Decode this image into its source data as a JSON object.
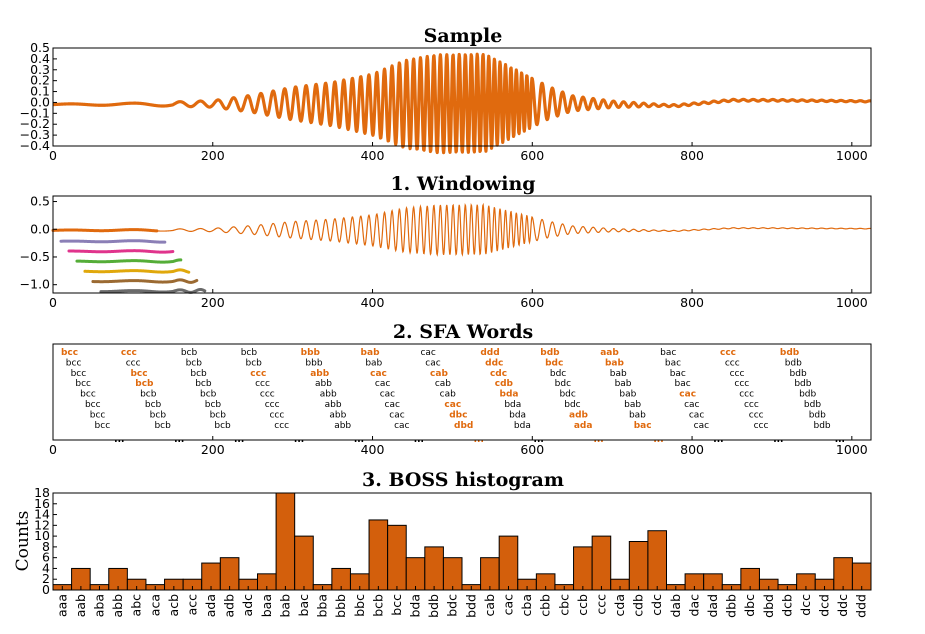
{
  "colors": {
    "orange": "#e06a0e",
    "bar_fill": "#d35f0c",
    "bar_edge": "#000000",
    "highlight": "#e06a0e",
    "normal_word": "#000000",
    "window_lines": [
      "#e06a0e",
      "#8b7fb6",
      "#e0348c",
      "#55ad38",
      "#e0a80c",
      "#9b6a32",
      "#6a6a6a"
    ]
  },
  "chart_data": [
    {
      "type": "line",
      "title": "Sample",
      "xlim": [
        0,
        1024
      ],
      "ylim": [
        -0.4,
        0.5
      ],
      "x_ticks": [
        0,
        200,
        400,
        600,
        800,
        1000
      ],
      "y_ticks": [
        -0.4,
        -0.3,
        -0.2,
        -0.1,
        0.0,
        0.1,
        0.2,
        0.3,
        0.4,
        0.5
      ],
      "y_tick_labels": [
        "−0.4",
        "−0.3",
        "−0.2",
        "−0.1",
        "0.0",
        "0.1",
        "0.2",
        "0.3",
        "0.4",
        "0.5"
      ],
      "series": [
        {
          "envelope": [
            [
              0,
              0.005
            ],
            [
              100,
              0.01
            ],
            [
              200,
              0.03
            ],
            [
              250,
              0.08
            ],
            [
              300,
              0.15
            ],
            [
              350,
              0.2
            ],
            [
              400,
              0.28
            ],
            [
              440,
              0.4
            ],
            [
              480,
              0.45
            ],
            [
              540,
              0.45
            ],
            [
              580,
              0.3
            ],
            [
              620,
              0.15
            ],
            [
              650,
              0.07
            ],
            [
              700,
              0.03
            ],
            [
              760,
              0.01
            ],
            [
              1024,
              0.005
            ]
          ],
          "offset": [
            [
              0,
              -0.02
            ],
            [
              300,
              -0.01
            ],
            [
              400,
              -0.02
            ],
            [
              600,
              0.0
            ],
            [
              780,
              -0.03
            ],
            [
              850,
              0.02
            ],
            [
              900,
              0.02
            ],
            [
              1024,
              0.01
            ]
          ]
        }
      ]
    },
    {
      "type": "line",
      "title": "1. Windowing",
      "xlim": [
        0,
        1024
      ],
      "ylim": [
        -1.15,
        0.6
      ],
      "x_ticks": [
        0,
        200,
        400,
        600,
        800,
        1000
      ],
      "y_ticks": [
        -1.0,
        -0.5,
        0.0,
        0.5
      ],
      "y_tick_labels": [
        "−1.0",
        "−0.5",
        "0.0",
        "0.5"
      ],
      "windows": [
        {
          "start": 0,
          "end": 130,
          "offset": 0.0
        },
        {
          "start": 10,
          "end": 140,
          "offset": -0.2
        },
        {
          "start": 20,
          "end": 150,
          "offset": -0.38
        },
        {
          "start": 30,
          "end": 160,
          "offset": -0.56
        },
        {
          "start": 40,
          "end": 170,
          "offset": -0.74
        },
        {
          "start": 50,
          "end": 180,
          "offset": -0.92
        },
        {
          "start": 60,
          "end": 190,
          "offset": -1.1
        }
      ]
    },
    {
      "type": "table",
      "title": "2. SFA Words",
      "xlim": [
        0,
        1024
      ],
      "x_ticks": [
        0,
        200,
        400,
        600,
        800,
        1000
      ],
      "ellipsis": "...",
      "groups": [
        {
          "x": 10,
          "words": [
            [
              "bcc",
              true
            ],
            [
              "bcc",
              false
            ],
            [
              "bcc",
              false
            ],
            [
              "bcc",
              false
            ],
            [
              "bcc",
              false
            ],
            [
              "bcc",
              false
            ],
            [
              "bcc",
              false
            ],
            [
              "bcc",
              false
            ]
          ]
        },
        {
          "x": 85,
          "words": [
            [
              "ccc",
              true
            ],
            [
              "ccc",
              false
            ],
            [
              "bcc",
              true
            ],
            [
              "bcb",
              true
            ],
            [
              "bcb",
              false
            ],
            [
              "bcb",
              false
            ],
            [
              "bcb",
              false
            ],
            [
              "bcb",
              false
            ]
          ]
        },
        {
          "x": 160,
          "words": [
            [
              "bcb",
              false
            ],
            [
              "bcb",
              false
            ],
            [
              "bcb",
              false
            ],
            [
              "bcb",
              false
            ],
            [
              "bcb",
              false
            ],
            [
              "bcb",
              false
            ],
            [
              "bcb",
              false
            ],
            [
              "bcb",
              false
            ]
          ]
        },
        {
          "x": 235,
          "words": [
            [
              "bcb",
              false
            ],
            [
              "bcb",
              false
            ],
            [
              "ccc",
              true
            ],
            [
              "ccc",
              false
            ],
            [
              "ccc",
              false
            ],
            [
              "ccc",
              false
            ],
            [
              "ccc",
              false
            ],
            [
              "ccc",
              false
            ]
          ]
        },
        {
          "x": 310,
          "words": [
            [
              "bbb",
              true
            ],
            [
              "bbb",
              false
            ],
            [
              "abb",
              true
            ],
            [
              "abb",
              false
            ],
            [
              "abb",
              false
            ],
            [
              "abb",
              false
            ],
            [
              "abb",
              false
            ],
            [
              "abb",
              false
            ]
          ]
        },
        {
          "x": 385,
          "words": [
            [
              "bab",
              true
            ],
            [
              "bab",
              false
            ],
            [
              "cac",
              true
            ],
            [
              "cac",
              false
            ],
            [
              "cac",
              false
            ],
            [
              "cac",
              false
            ],
            [
              "cac",
              false
            ],
            [
              "cac",
              false
            ]
          ]
        },
        {
          "x": 460,
          "words": [
            [
              "cac",
              false
            ],
            [
              "cac",
              false
            ],
            [
              "cab",
              true
            ],
            [
              "cab",
              false
            ],
            [
              "cab",
              false
            ],
            [
              "cac",
              true
            ],
            [
              "dbc",
              true
            ],
            [
              "dbd",
              true
            ]
          ]
        },
        {
          "x": 535,
          "words": [
            [
              "ddd",
              true
            ],
            [
              "ddc",
              true
            ],
            [
              "cdc",
              true
            ],
            [
              "cdb",
              true
            ],
            [
              "bda",
              true
            ],
            [
              "bda",
              false
            ],
            [
              "bda",
              false
            ],
            [
              "bda",
              false
            ]
          ]
        },
        {
          "x": 610,
          "words": [
            [
              "bdb",
              true
            ],
            [
              "bdc",
              true
            ],
            [
              "bdc",
              false
            ],
            [
              "bdc",
              false
            ],
            [
              "bdc",
              false
            ],
            [
              "bdc",
              false
            ],
            [
              "adb",
              true
            ],
            [
              "ada",
              true
            ]
          ]
        },
        {
          "x": 685,
          "words": [
            [
              "aab",
              true
            ],
            [
              "bab",
              true
            ],
            [
              "bab",
              false
            ],
            [
              "bab",
              false
            ],
            [
              "bab",
              false
            ],
            [
              "bab",
              false
            ],
            [
              "bab",
              false
            ],
            [
              "bac",
              true
            ]
          ]
        },
        {
          "x": 760,
          "words": [
            [
              "bac",
              false
            ],
            [
              "bac",
              false
            ],
            [
              "bac",
              false
            ],
            [
              "bac",
              false
            ],
            [
              "cac",
              true
            ],
            [
              "cac",
              false
            ],
            [
              "cac",
              false
            ],
            [
              "cac",
              false
            ]
          ]
        },
        {
          "x": 835,
          "words": [
            [
              "ccc",
              true
            ],
            [
              "ccc",
              false
            ],
            [
              "ccc",
              false
            ],
            [
              "ccc",
              false
            ],
            [
              "ccc",
              false
            ],
            [
              "ccc",
              false
            ],
            [
              "ccc",
              false
            ],
            [
              "ccc",
              false
            ]
          ]
        },
        {
          "x": 910,
          "words": [
            [
              "bdb",
              true
            ],
            [
              "bdb",
              false
            ],
            [
              "bdb",
              false
            ],
            [
              "bdb",
              false
            ],
            [
              "bdb",
              false
            ],
            [
              "bdb",
              false
            ],
            [
              "bdb",
              false
            ],
            [
              "bdb",
              false
            ]
          ]
        }
      ],
      "dots": [
        {
          "x": 83,
          "hl": false
        },
        {
          "x": 158,
          "hl": false
        },
        {
          "x": 233,
          "hl": false
        },
        {
          "x": 308,
          "hl": false
        },
        {
          "x": 383,
          "hl": false
        },
        {
          "x": 458,
          "hl": false
        },
        {
          "x": 533,
          "hl": true
        },
        {
          "x": 608,
          "hl": false
        },
        {
          "x": 683,
          "hl": true
        },
        {
          "x": 758,
          "hl": true
        },
        {
          "x": 833,
          "hl": false
        },
        {
          "x": 908,
          "hl": false
        },
        {
          "x": 985,
          "hl": false
        }
      ]
    },
    {
      "type": "bar",
      "title": "3. BOSS histogram",
      "ylabel": "Counts",
      "ylim": [
        0,
        18
      ],
      "y_ticks": [
        0,
        2,
        4,
        6,
        8,
        10,
        12,
        14,
        16,
        18
      ],
      "categories": [
        "aaa",
        "aab",
        "aba",
        "abb",
        "abc",
        "aca",
        "acb",
        "acc",
        "ada",
        "adb",
        "adc",
        "baa",
        "bab",
        "bac",
        "bba",
        "bbb",
        "bbc",
        "bcb",
        "bcc",
        "bda",
        "bdb",
        "bdc",
        "bdd",
        "cab",
        "cac",
        "cba",
        "cbb",
        "cbc",
        "ccb",
        "ccc",
        "cda",
        "cdb",
        "cdc",
        "dab",
        "dac",
        "dad",
        "dbb",
        "dbc",
        "dbd",
        "dcb",
        "dcc",
        "dcd",
        "ddc",
        "ddd"
      ],
      "values": [
        1,
        4,
        1,
        4,
        2,
        1,
        2,
        2,
        5,
        6,
        2,
        3,
        18,
        10,
        1,
        4,
        3,
        13,
        12,
        6,
        8,
        6,
        1,
        6,
        10,
        2,
        3,
        1,
        8,
        10,
        2,
        9,
        11,
        1,
        3,
        3,
        1,
        4,
        2,
        1,
        3,
        2,
        6,
        5
      ]
    }
  ]
}
